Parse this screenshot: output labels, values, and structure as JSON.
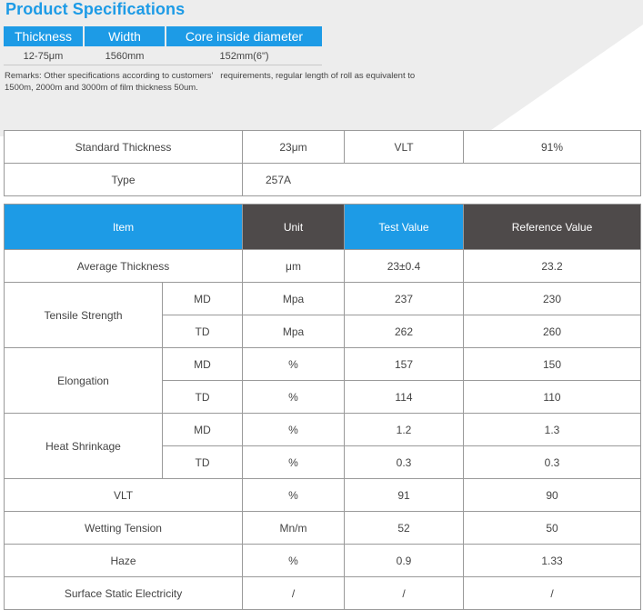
{
  "title": "Product Specifications",
  "spec_columns": [
    {
      "header": "Thickness",
      "value": "12-75μm"
    },
    {
      "header": "Width",
      "value": "1560mm"
    },
    {
      "header": "Core inside diameter",
      "value": "152mm(6\")"
    }
  ],
  "remarks_line1": "Remarks: Other specifications according to customers'   requirements, regular length of roll as equivalent to",
  "remarks_line2": "1500m, 2000m and 3000m of film thickness 50um.",
  "summary": {
    "standard_thickness_label": "Standard Thickness",
    "standard_thickness_value": "23μm",
    "vlt_label": "VLT",
    "vlt_value": "91%",
    "type_label": "Type",
    "type_value": "257A"
  },
  "table": {
    "headers": {
      "item": "Item",
      "unit": "Unit",
      "test": "Test Value",
      "reference": "Reference Value"
    },
    "average_thickness": {
      "label": "Average Thickness",
      "unit": "μm",
      "test": "23±0.4",
      "reference": "23.2"
    },
    "tensile_strength": {
      "label": "Tensile Strength",
      "md": {
        "dir": "MD",
        "unit": "Mpa",
        "test": "237",
        "reference": "230"
      },
      "td": {
        "dir": "TD",
        "unit": "Mpa",
        "test": "262",
        "reference": "260"
      }
    },
    "elongation": {
      "label": "Elongation",
      "md": {
        "dir": "MD",
        "unit": "%",
        "test": "157",
        "reference": "150"
      },
      "td": {
        "dir": "TD",
        "unit": "%",
        "test": "114",
        "reference": "110"
      }
    },
    "heat_shrinkage": {
      "label": "Heat Shrinkage",
      "md": {
        "dir": "MD",
        "unit": "%",
        "test": "1.2",
        "reference": "1.3"
      },
      "td": {
        "dir": "TD",
        "unit": "%",
        "test": "0.3",
        "reference": "0.3"
      }
    },
    "vlt": {
      "label": "VLT",
      "unit": "%",
      "test": "91",
      "reference": "90"
    },
    "wetting_tension": {
      "label": "Wetting Tension",
      "unit": "Mn/m",
      "test": "52",
      "reference": "50"
    },
    "haze": {
      "label": "Haze",
      "unit": "%",
      "test": "0.9",
      "reference": "1.33"
    },
    "surface_static": {
      "label": "Surface Static Electricity",
      "unit": "/",
      "test": "/",
      "reference": "/"
    }
  },
  "colors": {
    "accent_blue": "#1d9be6",
    "header_dark": "#4e4a4a",
    "band_gray": "#ededed"
  }
}
